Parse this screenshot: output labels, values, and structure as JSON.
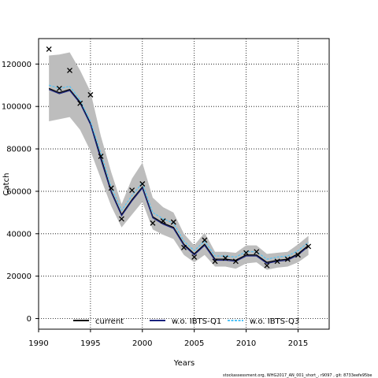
{
  "chart_data": {
    "type": "line",
    "title": "",
    "xlabel": "Years",
    "ylabel": "Catch",
    "xlim": [
      1990,
      2018
    ],
    "ylim": [
      -5000,
      132000
    ],
    "x_ticks": [
      1990,
      1995,
      2000,
      2005,
      2010,
      2015
    ],
    "y_ticks": [
      0,
      20000,
      40000,
      60000,
      80000,
      100000,
      120000
    ],
    "grid": true,
    "legend_position": "bottom",
    "series": [
      {
        "name": "current",
        "style": "line",
        "color": "#000000",
        "x": [
          1991,
          1992,
          1993,
          1994,
          1995,
          1996,
          1997,
          1998,
          1999,
          2000,
          2001,
          2002,
          2003,
          2004,
          2005,
          2006,
          2007,
          2008,
          2009,
          2010,
          2011,
          2012,
          2013,
          2014,
          2015,
          2016
        ],
        "values": [
          108500,
          106500,
          108000,
          102000,
          92000,
          76000,
          60000,
          49000,
          56000,
          62000,
          48000,
          45000,
          43000,
          35000,
          30500,
          35000,
          28000,
          28000,
          27500,
          30000,
          30000,
          26500,
          27500,
          28000,
          30500,
          34500
        ]
      },
      {
        "name": "w.o. IBTS-Q1",
        "style": "line",
        "color": "#1a237e",
        "x": [
          1991,
          1992,
          1993,
          1994,
          1995,
          1996,
          1997,
          1998,
          1999,
          2000,
          2001,
          2002,
          2003,
          2004,
          2005,
          2006,
          2007,
          2008,
          2009,
          2010,
          2011,
          2012,
          2013,
          2014,
          2015,
          2016
        ],
        "values": [
          108000,
          106000,
          107500,
          101500,
          91500,
          75000,
          59500,
          48500,
          55500,
          61500,
          47500,
          44500,
          42500,
          34500,
          30000,
          34500,
          27500,
          27500,
          27000,
          29500,
          29500,
          26000,
          27000,
          27500,
          30000,
          34000
        ]
      },
      {
        "name": "w.o. IBTS-Q3",
        "style": "line",
        "color": "#4fc3f7",
        "x": [
          1991,
          1992,
          1993,
          1994,
          1995,
          1996,
          1997,
          1998,
          1999,
          2000,
          2001,
          2002,
          2003,
          2004,
          2005,
          2006,
          2007,
          2008,
          2009,
          2010,
          2011,
          2012,
          2013,
          2014,
          2015,
          2016
        ],
        "values": [
          110000,
          108500,
          109500,
          103000,
          93000,
          78000,
          62000,
          51000,
          58000,
          64000,
          50000,
          47000,
          45000,
          36500,
          32000,
          36500,
          29500,
          29500,
          29000,
          31500,
          31500,
          28000,
          29000,
          29500,
          32000,
          36000
        ]
      }
    ],
    "confidence_band": {
      "x": [
        1991,
        1992,
        1993,
        1994,
        1995,
        1996,
        1997,
        1998,
        1999,
        2000,
        2001,
        2002,
        2003,
        2004,
        2005,
        2006,
        2007,
        2008,
        2009,
        2010,
        2011,
        2012,
        2013,
        2014,
        2015,
        2016
      ],
      "upper": [
        124000,
        124500,
        125500,
        117000,
        107000,
        86000,
        69000,
        54000,
        66000,
        73500,
        57000,
        52500,
        50000,
        40000,
        34500,
        40500,
        31500,
        31500,
        31000,
        34500,
        34500,
        30500,
        31000,
        31500,
        35000,
        39000
      ],
      "lower": [
        93000,
        94000,
        95000,
        89000,
        79000,
        66000,
        53000,
        43000,
        49000,
        55000,
        42000,
        39500,
        37500,
        30000,
        26500,
        30000,
        24500,
        24500,
        23500,
        26000,
        26500,
        23000,
        24000,
        24500,
        26500,
        30000
      ],
      "color": "#bdbdbd"
    },
    "observations": {
      "marker": "x",
      "x": [
        1991,
        1992,
        1993,
        1994,
        1995,
        1996,
        1997,
        1998,
        1999,
        2000,
        2001,
        2002,
        2003,
        2004,
        2005,
        2006,
        2007,
        2008,
        2009,
        2010,
        2011,
        2012,
        2013,
        2014,
        2015,
        2016
      ],
      "values": [
        127000,
        108500,
        117000,
        101500,
        105500,
        76500,
        61500,
        47000,
        60500,
        63500,
        45000,
        46000,
        45500,
        33500,
        29000,
        37000,
        27000,
        28500,
        27000,
        31000,
        31500,
        25000,
        27000,
        28000,
        30000,
        34000
      ]
    }
  },
  "footer": {
    "text": "stockassessment.org, WHG2017_AN_001_short_, r9097 , git: 8733eefe95be"
  }
}
